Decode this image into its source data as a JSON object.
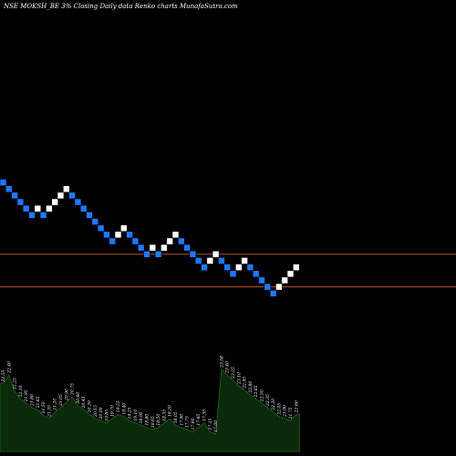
{
  "chart_data": {
    "type": "renko",
    "title": "NSE MOKSH_BE 3% Closing Daily data  Renko  charts MunafaSutra.com",
    "colors": {
      "background": "#000000",
      "up_brick": "#ffffff",
      "down_brick": "#1e78ff",
      "reference_line": "#b4502a",
      "volume_area": "#0a2a0a",
      "volume_edge": "#1f6a1f"
    },
    "reference_levels": [
      {
        "price": 26.6,
        "label": ""
      },
      {
        "price": 24.6,
        "label": ""
      }
    ],
    "price_range": [
      21.5,
      33.8
    ],
    "bricks": [
      {
        "dir": "down",
        "level": 30.8
      },
      {
        "dir": "down",
        "level": 30.4
      },
      {
        "dir": "down",
        "level": 30.0
      },
      {
        "dir": "down",
        "level": 29.6
      },
      {
        "dir": "down",
        "level": 29.2
      },
      {
        "dir": "down",
        "level": 28.8
      },
      {
        "dir": "up",
        "level": 29.2
      },
      {
        "dir": "down",
        "level": 28.8
      },
      {
        "dir": "up",
        "level": 29.2
      },
      {
        "dir": "up",
        "level": 29.6
      },
      {
        "dir": "up",
        "level": 30.0
      },
      {
        "dir": "up",
        "level": 30.4
      },
      {
        "dir": "down",
        "level": 30.0
      },
      {
        "dir": "down",
        "level": 29.6
      },
      {
        "dir": "down",
        "level": 29.2
      },
      {
        "dir": "down",
        "level": 28.8
      },
      {
        "dir": "down",
        "level": 28.4
      },
      {
        "dir": "down",
        "level": 28.0
      },
      {
        "dir": "down",
        "level": 27.6
      },
      {
        "dir": "down",
        "level": 27.2
      },
      {
        "dir": "up",
        "level": 27.6
      },
      {
        "dir": "up",
        "level": 28.0
      },
      {
        "dir": "down",
        "level": 27.6
      },
      {
        "dir": "down",
        "level": 27.2
      },
      {
        "dir": "down",
        "level": 26.8
      },
      {
        "dir": "down",
        "level": 26.4
      },
      {
        "dir": "up",
        "level": 26.8
      },
      {
        "dir": "down",
        "level": 26.4
      },
      {
        "dir": "up",
        "level": 26.8
      },
      {
        "dir": "up",
        "level": 27.2
      },
      {
        "dir": "up",
        "level": 27.6
      },
      {
        "dir": "down",
        "level": 27.2
      },
      {
        "dir": "down",
        "level": 26.8
      },
      {
        "dir": "down",
        "level": 26.4
      },
      {
        "dir": "down",
        "level": 26.0
      },
      {
        "dir": "down",
        "level": 25.6
      },
      {
        "dir": "up",
        "level": 26.0
      },
      {
        "dir": "up",
        "level": 26.4
      },
      {
        "dir": "down",
        "level": 26.0
      },
      {
        "dir": "down",
        "level": 25.6
      },
      {
        "dir": "down",
        "level": 25.2
      },
      {
        "dir": "up",
        "level": 25.6
      },
      {
        "dir": "up",
        "level": 26.0
      },
      {
        "dir": "down",
        "level": 25.6
      },
      {
        "dir": "down",
        "level": 25.2
      },
      {
        "dir": "down",
        "level": 24.8
      },
      {
        "dir": "down",
        "level": 24.4
      },
      {
        "dir": "down",
        "level": 24.0
      },
      {
        "dir": "up",
        "level": 24.4
      },
      {
        "dir": "up",
        "level": 24.8
      },
      {
        "dir": "up",
        "level": 25.2
      },
      {
        "dir": "up",
        "level": 25.6
      }
    ],
    "volume_labels": [
      "22.55",
      "22.40",
      "22.25",
      "22.10",
      "21.95",
      "21.80",
      "21.65",
      "21.50",
      "21.35",
      "21.20",
      "21.05",
      "20.90",
      "20.75",
      "20.60",
      "20.45",
      "20.30",
      "20.15",
      "20.00",
      "19.85",
      "19.70",
      "19.55",
      "19.40",
      "19.25",
      "19.10",
      "18.95",
      "18.80",
      "18.65",
      "18.50",
      "18.35",
      "18.20",
      "18.05",
      "17.90",
      "17.75",
      "17.60",
      "17.45",
      "17.30",
      "17.15",
      "17.00",
      "23.58",
      "23.40",
      "23.25",
      "23.10",
      "22.95",
      "22.80",
      "22.65",
      "22.50",
      "22.35",
      "22.20",
      "22.05",
      "21.90",
      "21.75",
      "21.60"
    ],
    "volumes": [
      62,
      70,
      55,
      48,
      44,
      40,
      38,
      33,
      30,
      36,
      40,
      45,
      50,
      42,
      38,
      34,
      30,
      28,
      26,
      30,
      34,
      32,
      28,
      26,
      24,
      22,
      20,
      22,
      26,
      30,
      24,
      22,
      20,
      18,
      22,
      26,
      18,
      16,
      75,
      70,
      65,
      60,
      56,
      52,
      48,
      44,
      40,
      36,
      32,
      30,
      28,
      34
    ]
  }
}
